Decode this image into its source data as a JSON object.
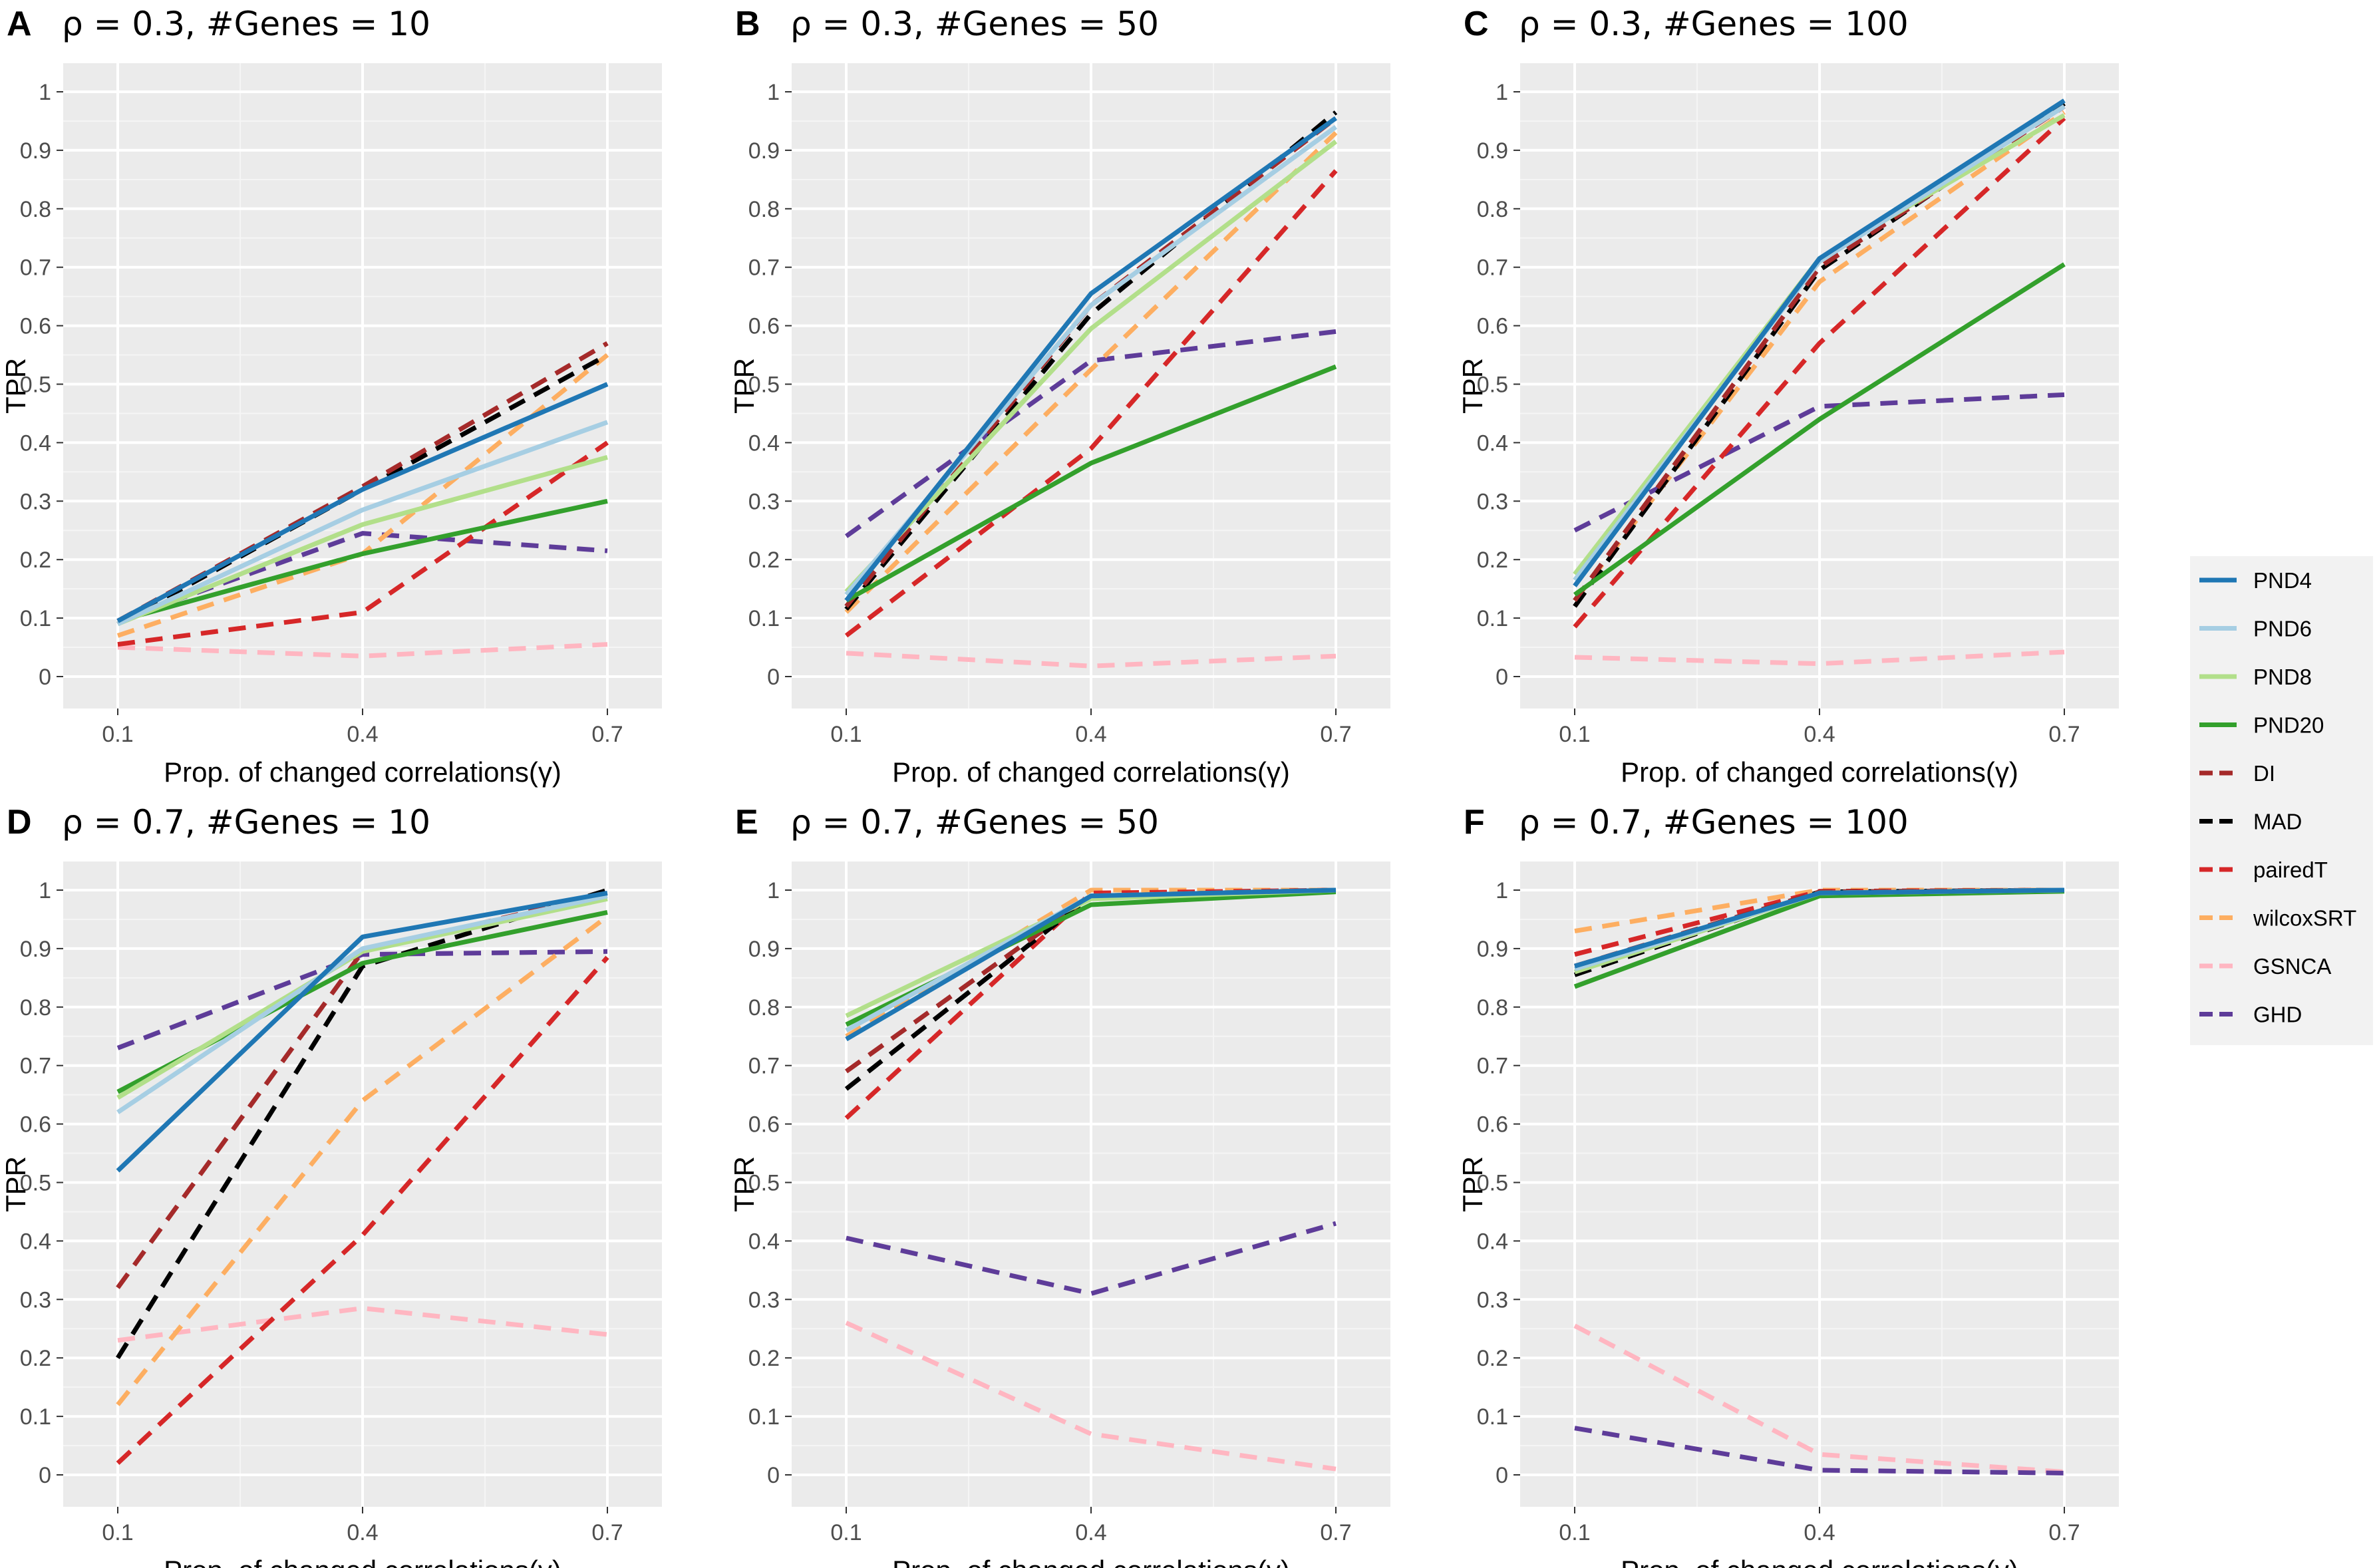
{
  "legend": {
    "entries": [
      {
        "name": "PND4",
        "color": "#1f77b4",
        "dash": "solid"
      },
      {
        "name": "PND6",
        "color": "#a6cee3",
        "dash": "solid"
      },
      {
        "name": "PND8",
        "color": "#b2df8a",
        "dash": "solid"
      },
      {
        "name": "PND20",
        "color": "#33a02c",
        "dash": "solid"
      },
      {
        "name": "DI",
        "color": "#a52a2a",
        "dash": "dashed"
      },
      {
        "name": "MAD",
        "color": "#000000",
        "dash": "dashed"
      },
      {
        "name": "pairedT",
        "color": "#d62728",
        "dash": "dashed"
      },
      {
        "name": "wilcoxSRT",
        "color": "#fdae61",
        "dash": "dashed"
      },
      {
        "name": "GSNCA",
        "color": "#ffb6c1",
        "dash": "dashed"
      },
      {
        "name": "GHD",
        "color": "#5e3c99",
        "dash": "dashed"
      }
    ]
  },
  "chart_data": [
    {
      "type": "line",
      "letter": "A",
      "title": "ρ = 0.3, #Genes = 10",
      "xlabel": "Prop. of changed correlations(γ)",
      "ylabel": "TPR",
      "x": [
        0.1,
        0.4,
        0.7
      ],
      "xticks": [
        "0.1",
        "0.4",
        "0.7"
      ],
      "ylim": [
        0,
        1
      ],
      "yticks": [
        "0",
        "0.1",
        "0.2",
        "0.3",
        "0.4",
        "0.5",
        "0.6",
        "0.7",
        "0.8",
        "0.9",
        "1"
      ],
      "series": [
        {
          "name": "GSNCA",
          "values": [
            0.05,
            0.035,
            0.055
          ]
        },
        {
          "name": "GHD",
          "values": [
            0.095,
            0.245,
            0.215
          ]
        },
        {
          "name": "wilcoxSRT",
          "values": [
            0.07,
            0.21,
            0.55
          ]
        },
        {
          "name": "pairedT",
          "values": [
            0.055,
            0.11,
            0.4
          ]
        },
        {
          "name": "MAD",
          "values": [
            0.09,
            0.32,
            0.55
          ]
        },
        {
          "name": "DI",
          "values": [
            0.095,
            0.325,
            0.57
          ]
        },
        {
          "name": "PND20",
          "values": [
            0.095,
            0.21,
            0.3
          ]
        },
        {
          "name": "PND8",
          "values": [
            0.09,
            0.26,
            0.375
          ]
        },
        {
          "name": "PND6",
          "values": [
            0.09,
            0.285,
            0.435
          ]
        },
        {
          "name": "PND4",
          "values": [
            0.095,
            0.32,
            0.5
          ]
        }
      ]
    },
    {
      "type": "line",
      "letter": "B",
      "title": "ρ = 0.3, #Genes = 50",
      "xlabel": "Prop. of changed correlations(γ)",
      "ylabel": "TPR",
      "x": [
        0.1,
        0.4,
        0.7
      ],
      "xticks": [
        "0.1",
        "0.4",
        "0.7"
      ],
      "ylim": [
        0,
        1
      ],
      "yticks": [
        "0",
        "0.1",
        "0.2",
        "0.3",
        "0.4",
        "0.5",
        "0.6",
        "0.7",
        "0.8",
        "0.9",
        "1"
      ],
      "series": [
        {
          "name": "GSNCA",
          "values": [
            0.04,
            0.018,
            0.035
          ]
        },
        {
          "name": "GHD",
          "values": [
            0.24,
            0.54,
            0.59
          ]
        },
        {
          "name": "wilcoxSRT",
          "values": [
            0.11,
            0.525,
            0.93
          ]
        },
        {
          "name": "pairedT",
          "values": [
            0.07,
            0.39,
            0.865
          ]
        },
        {
          "name": "MAD",
          "values": [
            0.115,
            0.62,
            0.965
          ]
        },
        {
          "name": "DI",
          "values": [
            0.12,
            0.635,
            0.955
          ]
        },
        {
          "name": "PND20",
          "values": [
            0.13,
            0.365,
            0.53
          ]
        },
        {
          "name": "PND8",
          "values": [
            0.145,
            0.595,
            0.915
          ]
        },
        {
          "name": "PND6",
          "values": [
            0.14,
            0.635,
            0.94
          ]
        },
        {
          "name": "PND4",
          "values": [
            0.13,
            0.655,
            0.955
          ]
        }
      ]
    },
    {
      "type": "line",
      "letter": "C",
      "title": "ρ = 0.3, #Genes = 100",
      "xlabel": "Prop. of changed correlations(γ)",
      "ylabel": "TPR",
      "x": [
        0.1,
        0.4,
        0.7
      ],
      "xticks": [
        "0.1",
        "0.4",
        "0.7"
      ],
      "ylim": [
        0,
        1
      ],
      "yticks": [
        "0",
        "0.1",
        "0.2",
        "0.3",
        "0.4",
        "0.5",
        "0.6",
        "0.7",
        "0.8",
        "0.9",
        "1"
      ],
      "series": [
        {
          "name": "GSNCA",
          "values": [
            0.033,
            0.022,
            0.042
          ]
        },
        {
          "name": "GHD",
          "values": [
            0.25,
            0.462,
            0.482
          ]
        },
        {
          "name": "wilcoxSRT",
          "values": [
            0.13,
            0.675,
            0.965
          ]
        },
        {
          "name": "pairedT",
          "values": [
            0.085,
            0.57,
            0.955
          ]
        },
        {
          "name": "MAD",
          "values": [
            0.12,
            0.695,
            0.98
          ]
        },
        {
          "name": "DI",
          "values": [
            0.13,
            0.7,
            0.975
          ]
        },
        {
          "name": "PND20",
          "values": [
            0.14,
            0.44,
            0.705
          ]
        },
        {
          "name": "PND8",
          "values": [
            0.175,
            0.715,
            0.96
          ]
        },
        {
          "name": "PND6",
          "values": [
            0.165,
            0.71,
            0.975
          ]
        },
        {
          "name": "PND4",
          "values": [
            0.155,
            0.715,
            0.985
          ]
        }
      ]
    },
    {
      "type": "line",
      "letter": "D",
      "title": "ρ = 0.7, #Genes = 10",
      "xlabel": "Prop. of changed correlations(γ)",
      "ylabel": "TPR",
      "x": [
        0.1,
        0.4,
        0.7
      ],
      "xticks": [
        "0.1",
        "0.4",
        "0.7"
      ],
      "ylim": [
        0,
        1
      ],
      "yticks": [
        "0",
        "0.1",
        "0.2",
        "0.3",
        "0.4",
        "0.5",
        "0.6",
        "0.7",
        "0.8",
        "0.9",
        "1"
      ],
      "series": [
        {
          "name": "GSNCA",
          "values": [
            0.23,
            0.285,
            0.24
          ]
        },
        {
          "name": "GHD",
          "values": [
            0.73,
            0.89,
            0.895
          ]
        },
        {
          "name": "wilcoxSRT",
          "values": [
            0.12,
            0.64,
            0.955
          ]
        },
        {
          "name": "pairedT",
          "values": [
            0.02,
            0.41,
            0.885
          ]
        },
        {
          "name": "MAD",
          "values": [
            0.2,
            0.87,
            1.0
          ]
        },
        {
          "name": "DI",
          "values": [
            0.32,
            0.895,
            0.995
          ]
        },
        {
          "name": "PND20",
          "values": [
            0.655,
            0.875,
            0.962
          ]
        },
        {
          "name": "PND8",
          "values": [
            0.645,
            0.895,
            0.985
          ]
        },
        {
          "name": "PND6",
          "values": [
            0.62,
            0.9,
            0.99
          ]
        },
        {
          "name": "PND4",
          "values": [
            0.52,
            0.92,
            0.995
          ]
        }
      ]
    },
    {
      "type": "line",
      "letter": "E",
      "title": "ρ = 0.7, #Genes = 50",
      "xlabel": "Prop. of changed correlations(γ)",
      "ylabel": "TPR",
      "x": [
        0.1,
        0.4,
        0.7
      ],
      "xticks": [
        "0.1",
        "0.4",
        "0.7"
      ],
      "ylim": [
        0,
        1
      ],
      "yticks": [
        "0",
        "0.1",
        "0.2",
        "0.3",
        "0.4",
        "0.5",
        "0.6",
        "0.7",
        "0.8",
        "0.9",
        "1"
      ],
      "series": [
        {
          "name": "GSNCA",
          "values": [
            0.26,
            0.07,
            0.01
          ]
        },
        {
          "name": "GHD",
          "values": [
            0.405,
            0.31,
            0.43
          ]
        },
        {
          "name": "wilcoxSRT",
          "values": [
            0.75,
            1.0,
            1.0
          ]
        },
        {
          "name": "pairedT",
          "values": [
            0.61,
            0.995,
            1.0
          ]
        },
        {
          "name": "MAD",
          "values": [
            0.66,
            0.99,
            1.0
          ]
        },
        {
          "name": "DI",
          "values": [
            0.69,
            0.99,
            1.0
          ]
        },
        {
          "name": "PND20",
          "values": [
            0.77,
            0.975,
            0.997
          ]
        },
        {
          "name": "PND8",
          "values": [
            0.785,
            0.985,
            1.0
          ]
        },
        {
          "name": "PND6",
          "values": [
            0.76,
            0.99,
            1.0
          ]
        },
        {
          "name": "PND4",
          "values": [
            0.745,
            0.99,
            1.0
          ]
        }
      ]
    },
    {
      "type": "line",
      "letter": "F",
      "title": "ρ = 0.7, #Genes = 100",
      "xlabel": "Prop. of changed correlations(γ)",
      "ylabel": "TPR",
      "x": [
        0.1,
        0.4,
        0.7
      ],
      "xticks": [
        "0.1",
        "0.4",
        "0.7"
      ],
      "ylim": [
        0,
        1
      ],
      "yticks": [
        "0",
        "0.1",
        "0.2",
        "0.3",
        "0.4",
        "0.5",
        "0.6",
        "0.7",
        "0.8",
        "0.9",
        "1"
      ],
      "series": [
        {
          "name": "GSNCA",
          "values": [
            0.255,
            0.035,
            0.005
          ]
        },
        {
          "name": "GHD",
          "values": [
            0.08,
            0.008,
            0.003
          ]
        },
        {
          "name": "wilcoxSRT",
          "values": [
            0.93,
            1.0,
            1.0
          ]
        },
        {
          "name": "pairedT",
          "values": [
            0.89,
            0.998,
            1.0
          ]
        },
        {
          "name": "MAD",
          "values": [
            0.855,
            0.997,
            1.0
          ]
        },
        {
          "name": "DI",
          "values": [
            0.87,
            0.997,
            1.0
          ]
        },
        {
          "name": "PND20",
          "values": [
            0.835,
            0.99,
            0.998
          ]
        },
        {
          "name": "PND8",
          "values": [
            0.86,
            0.995,
            1.0
          ]
        },
        {
          "name": "PND6",
          "values": [
            0.865,
            0.995,
            1.0
          ]
        },
        {
          "name": "PND4",
          "values": [
            0.87,
            0.995,
            1.0
          ]
        }
      ]
    }
  ]
}
